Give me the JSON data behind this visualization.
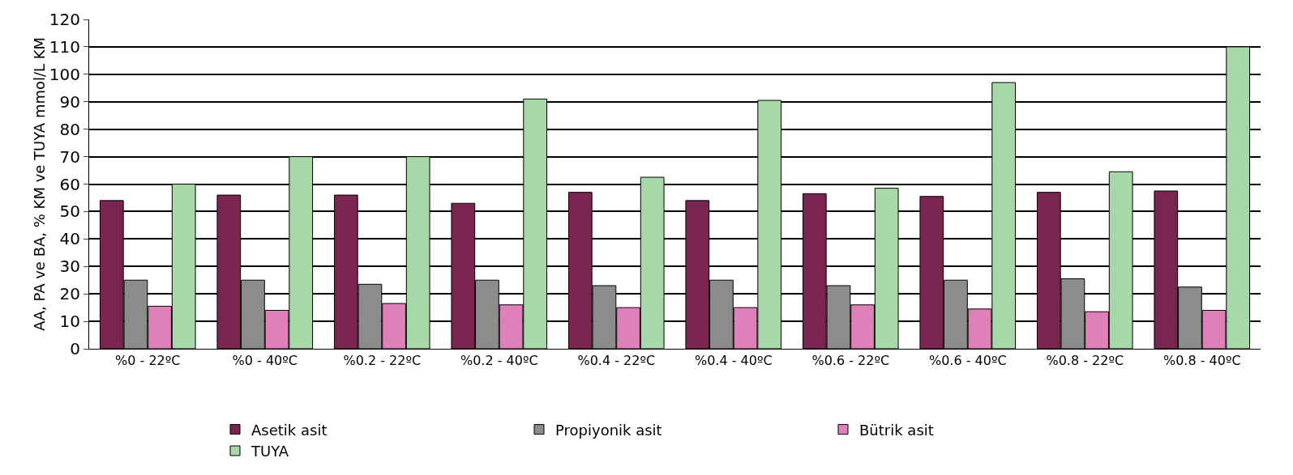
{
  "chart_data": {
    "type": "bar",
    "ylabel": "AA, PA ve BA, % KM ve TUYA mmol/L KM",
    "categories": [
      "%0 - 22ºC",
      "%0 - 40ºC",
      "%0.2 - 22ºC",
      "%0.2 - 40ºC",
      "%0.4 - 22ºC",
      "%0.4 - 40ºC",
      "%0.6 - 22ºC",
      "%0.6 - 40ºC",
      "%0.8 - 22ºC",
      "%0.8 - 40ºC"
    ],
    "series": [
      {
        "name": "Asetik asit",
        "color": "#7a2450",
        "values": [
          54,
          56,
          56,
          53,
          57,
          54,
          56.5,
          55.5,
          57,
          57.5
        ]
      },
      {
        "name": "Propiyonik asit",
        "color": "#8c8c8c",
        "values": [
          25,
          25,
          23.5,
          25,
          23,
          25,
          23,
          25,
          25.5,
          22.5
        ]
      },
      {
        "name": "Bütrik asit",
        "color": "#e080b8",
        "values": [
          15.5,
          14,
          16.5,
          16,
          15,
          15,
          16,
          14.5,
          13.5,
          14
        ]
      },
      {
        "name": "TUYA",
        "color": "#a8d8a8",
        "values": [
          60,
          70,
          70,
          91,
          62.5,
          90.5,
          58.5,
          97,
          64.5,
          110
        ]
      }
    ],
    "ylim": [
      0,
      120
    ],
    "yticks": [
      0,
      10,
      20,
      30,
      40,
      50,
      60,
      70,
      80,
      90,
      100,
      110,
      120
    ],
    "grid": "y",
    "legend": "bottom"
  }
}
